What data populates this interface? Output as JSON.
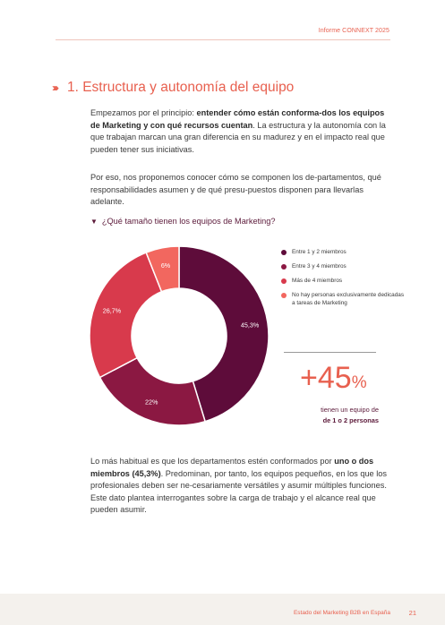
{
  "header": {
    "report": "Informe CONNEXT 2025"
  },
  "section": {
    "chevrons": "›››››",
    "title": "1. Estructura y autonomía del equipo"
  },
  "paragraph1": {
    "lead": "Empezamos por el principio: ",
    "bold": "entender cómo están conforma-dos los equipos de Marketing y con qué recursos cuentan",
    "rest": ". La estructura y la autonomía con la que trabajan marcan una gran diferencia en su madurez y en el impacto real que pueden tener sus iniciativas."
  },
  "paragraph2": "Por eso, nos proponemos conocer cómo se componen los de-partamentos, qué responsabilidades asumen y de qué presu-puestos disponen para llevarlas adelante.",
  "question": {
    "marker": "▼",
    "text": "¿Qué tamaño tienen los equipos de Marketing?"
  },
  "chart_data": {
    "type": "pie",
    "variant": "donut",
    "categories": [
      "Entre 1 y 2 miembros",
      "Entre 3 y 4 miembros",
      "Más de 4 miembros",
      "No hay personas exclusivamente dedicadas a tareas de Marketing"
    ],
    "values": [
      45.3,
      22,
      26.7,
      6
    ],
    "labels": [
      "45,3%",
      "22%",
      "26,7%",
      "6%"
    ],
    "colors": [
      "#5e0c3a",
      "#8b1842",
      "#d83a4c",
      "#f2675f"
    ],
    "legend_position": "right"
  },
  "highlight": {
    "value": "+45",
    "unit": "%",
    "line1": "tienen un equipo de",
    "line2": "de 1 o 2 personas"
  },
  "paragraph3": {
    "lead": "Lo más habitual es que los departamentos estén conformados por ",
    "bold": "uno o dos miembros (45,3%)",
    "rest": ". Predominan, por tanto, los equipos pequeños, en los que los profesionales deben ser ne-cesariamente versátiles y asumir múltiples funciones. Este dato plantea interrogantes sobre la carga de trabajo y el alcance real que pueden asumir."
  },
  "footer": {
    "text": "Estado del Marketing B2B en España",
    "page": "21"
  }
}
